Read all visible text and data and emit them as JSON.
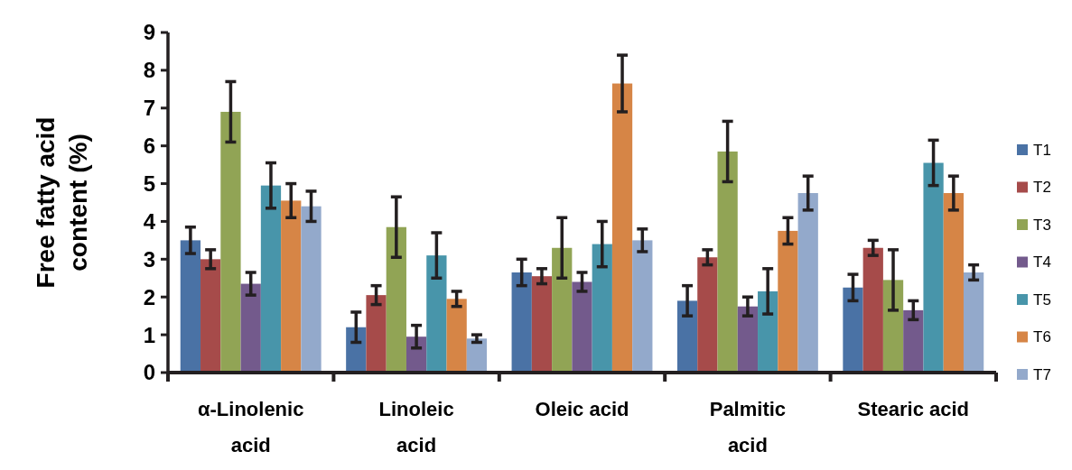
{
  "chart_data": {
    "type": "bar",
    "ylabel": "Free fatty acid content (%)",
    "categories": [
      "α-Linolenic acid",
      "Linoleic acid",
      "Oleic acid",
      "Palmitic acid",
      "Stearic acid"
    ],
    "ylim": [
      0,
      9
    ],
    "yticks": [
      0,
      1,
      2,
      3,
      4,
      5,
      6,
      7,
      8,
      9
    ],
    "grid": false,
    "legend": "right",
    "series": [
      {
        "name": "T1",
        "color": "#4a72a5",
        "values": [
          3.5,
          1.2,
          2.65,
          1.9,
          2.25
        ],
        "errors": [
          0.35,
          0.4,
          0.35,
          0.4,
          0.35
        ]
      },
      {
        "name": "T2",
        "color": "#a64b4a",
        "values": [
          3.0,
          2.05,
          2.55,
          3.05,
          3.3
        ],
        "errors": [
          0.25,
          0.25,
          0.2,
          0.2,
          0.2
        ]
      },
      {
        "name": "T3",
        "color": "#91a455",
        "values": [
          6.9,
          3.85,
          3.3,
          5.85,
          2.45
        ],
        "errors": [
          0.8,
          0.8,
          0.8,
          0.8,
          0.8
        ]
      },
      {
        "name": "T4",
        "color": "#735a8c",
        "values": [
          2.35,
          0.95,
          2.4,
          1.75,
          1.65
        ],
        "errors": [
          0.3,
          0.3,
          0.25,
          0.25,
          0.25
        ]
      },
      {
        "name": "T5",
        "color": "#4895aa",
        "values": [
          4.95,
          3.1,
          3.4,
          2.15,
          5.55
        ],
        "errors": [
          0.6,
          0.6,
          0.6,
          0.6,
          0.6
        ]
      },
      {
        "name": "T6",
        "color": "#d68546",
        "values": [
          4.55,
          1.95,
          7.65,
          3.75,
          4.75
        ],
        "errors": [
          0.45,
          0.2,
          0.75,
          0.35,
          0.45
        ]
      },
      {
        "name": "T7",
        "color": "#93a9cb",
        "values": [
          4.4,
          0.9,
          3.5,
          4.75,
          2.65
        ],
        "errors": [
          0.4,
          0.1,
          0.3,
          0.45,
          0.2
        ]
      }
    ]
  }
}
